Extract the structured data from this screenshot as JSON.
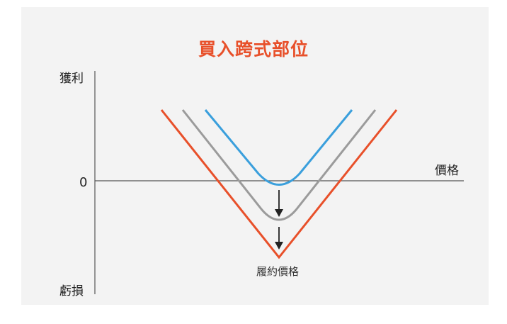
{
  "title": "買入跨式部位",
  "axis": {
    "profit_label": "獲利",
    "loss_label": "虧損",
    "zero_label": "0",
    "price_label": "價格"
  },
  "annotation": {
    "strike_label": "履約價格"
  },
  "colors": {
    "title": "#e8502a",
    "line_expiry": "#e8502a",
    "line_middle": "#9b9b9b",
    "line_early": "#3a9fdc",
    "background": "#f3f3f3"
  }
}
